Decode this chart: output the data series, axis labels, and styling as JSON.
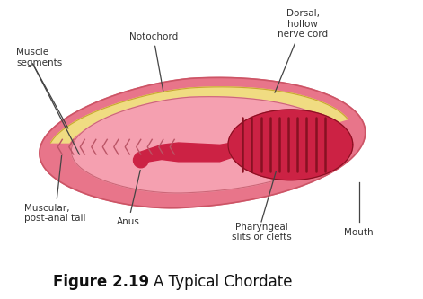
{
  "title_bold": "Figure 2.19",
  "title_normal": "A Typical Chordate",
  "title_fontsize": 12,
  "background_color": "#ffffff",
  "labels": {
    "muscle_segments": "Muscle\nsegments",
    "notochord": "Notochord",
    "dorsal": "Dorsal,\nhollow\nnerve cord",
    "muscular": "Muscular,\npost-anal tail",
    "anus": "Anus",
    "pharyngeal": "Pharyngeal\nslits or clefts",
    "mouth": "Mouth"
  },
  "colors": {
    "outer_body": "#E8758A",
    "outer_edge": "#CC5566",
    "notochord_fill": "#F0DC82",
    "notochord_edge": "#C8A830",
    "inner_body": "#F5A0B0",
    "inner_edge": "#CC6677",
    "gut_fill": "#CC2244",
    "gut_edge": "#881122",
    "pharynx_fill": "#CC2244",
    "pharynx_edge": "#881122",
    "chevron_color": "#BB5566",
    "gill_color": "#881122",
    "text_color": "#333333",
    "line_color": "#444444"
  }
}
